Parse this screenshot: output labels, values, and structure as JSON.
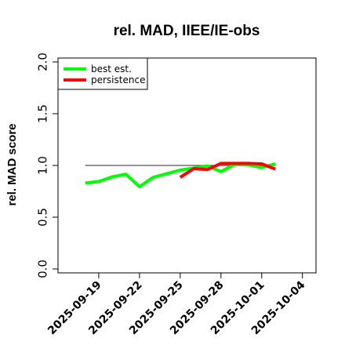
{
  "chart_data": {
    "type": "line",
    "title": "rel. MAD, IIEE/IE-obs",
    "xlabel": "",
    "ylabel": "rel. MAD score",
    "xlim": [
      "2025-09-16",
      "2025-10-05"
    ],
    "ylim": [
      0,
      2.0
    ],
    "y_ticks": [
      "0.0",
      "0.5",
      "1.0",
      "1.5",
      "2.0"
    ],
    "x_ticks": [
      "2025-09-19",
      "2025-09-22",
      "2025-09-25",
      "2025-09-28",
      "2025-10-01",
      "2025-10-04"
    ],
    "reference_line": {
      "y": 1.0,
      "x": [
        "2025-09-18",
        "2025-10-02"
      ],
      "color": "#555555"
    },
    "legend_position": "top-left",
    "grid": false,
    "series": [
      {
        "name": "best est.",
        "color": "#00ff00",
        "x": [
          "2025-09-18",
          "2025-09-19",
          "2025-09-20",
          "2025-09-21",
          "2025-09-22",
          "2025-09-23",
          "2025-09-24",
          "2025-09-25",
          "2025-09-26",
          "2025-09-27",
          "2025-09-28",
          "2025-09-29",
          "2025-09-30",
          "2025-10-01",
          "2025-10-02"
        ],
        "values": [
          0.83,
          0.845,
          0.89,
          0.915,
          0.795,
          0.885,
          0.92,
          0.955,
          0.975,
          0.995,
          0.94,
          1.01,
          1.005,
          0.98,
          1.015
        ]
      },
      {
        "name": "persistence",
        "color": "#ff0000",
        "x": [
          "2025-09-25",
          "2025-09-26",
          "2025-09-27",
          "2025-09-28",
          "2025-09-29",
          "2025-09-30",
          "2025-10-01",
          "2025-10-02"
        ],
        "values": [
          0.885,
          0.97,
          0.96,
          1.02,
          1.02,
          1.02,
          1.015,
          0.965
        ]
      }
    ]
  }
}
